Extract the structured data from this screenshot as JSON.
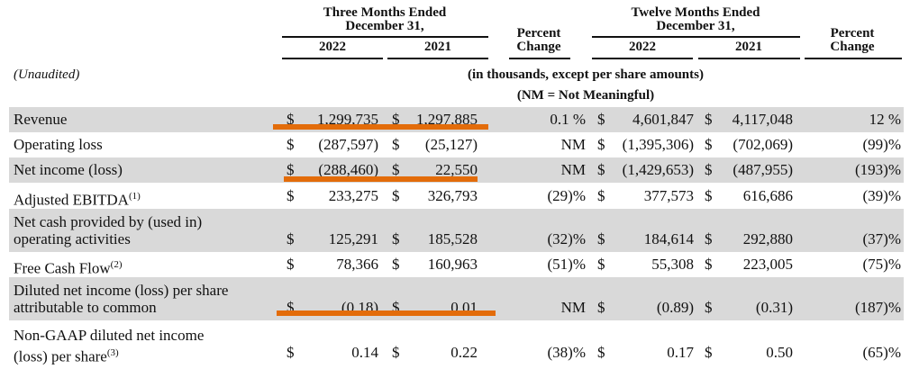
{
  "header": {
    "three_months": [
      "Three Months Ended",
      "December 31,"
    ],
    "twelve_months": [
      "Twelve Months Ended",
      "December 31,"
    ],
    "percent_change_1": [
      "Percent",
      "Change"
    ],
    "percent_change_2": [
      "Percent",
      "Change"
    ],
    "years": [
      "2022",
      "2021",
      "2022",
      "2021"
    ],
    "unaudited": "(Unaudited)",
    "units_note": "(in thousands, except per share amounts)",
    "nm_note": "(NM = Not Meaningful)"
  },
  "table": {
    "rows": [
      {
        "label": [
          "Revenue"
        ],
        "cells": [
          "$",
          "1,299,735",
          "$",
          "1,297,885",
          "0.1 %",
          "$",
          "4,601,847",
          "$",
          "4,117,048",
          "12 %"
        ]
      },
      {
        "label": [
          "Operating loss"
        ],
        "cells": [
          "$",
          "(287,597)",
          "$",
          "(25,127)",
          "NM",
          "$",
          "(1,395,306)",
          "$",
          "(702,069)",
          "(99)%"
        ]
      },
      {
        "label": [
          "Net income (loss)"
        ],
        "cells": [
          "$",
          "(288,460)",
          "$",
          "22,550",
          "NM",
          "$",
          "(1,429,653)",
          "$",
          "(487,955)",
          "(193)%"
        ]
      },
      {
        "label": [
          "Adjusted EBITDA"
        ],
        "note": "(1)",
        "cells": [
          "$",
          "233,275",
          "$",
          "326,793",
          "(29)%",
          "$",
          "377,573",
          "$",
          "616,686",
          "(39)%"
        ]
      },
      {
        "label": [
          "Net cash provided by (used in)",
          "operating activities"
        ],
        "cells": [
          "$",
          "125,291",
          "$",
          "185,528",
          "(32)%",
          "$",
          "184,614",
          "$",
          "292,880",
          "(37)%"
        ]
      },
      {
        "label": [
          "Free Cash Flow"
        ],
        "note": "(2)",
        "cells": [
          "$",
          "78,366",
          "$",
          "160,963",
          "(51)%",
          "$",
          "55,308",
          "$",
          "223,005",
          "(75)%"
        ]
      },
      {
        "label": [
          "Diluted net income (loss) per share",
          "attributable to common"
        ],
        "cells": [
          "$",
          "(0.18)",
          "$",
          "0.01",
          "NM",
          "$",
          "(0.89)",
          "$",
          "(0.31)",
          "(187)%"
        ]
      },
      {
        "label": [
          "Non-GAAP diluted net income",
          "(loss) per share"
        ],
        "note": "(3)",
        "cells": [
          "$",
          "0.14",
          "$",
          "0.22",
          "(38)%",
          "$",
          "0.17",
          "$",
          "0.50",
          "(65)%"
        ]
      }
    ]
  }
}
